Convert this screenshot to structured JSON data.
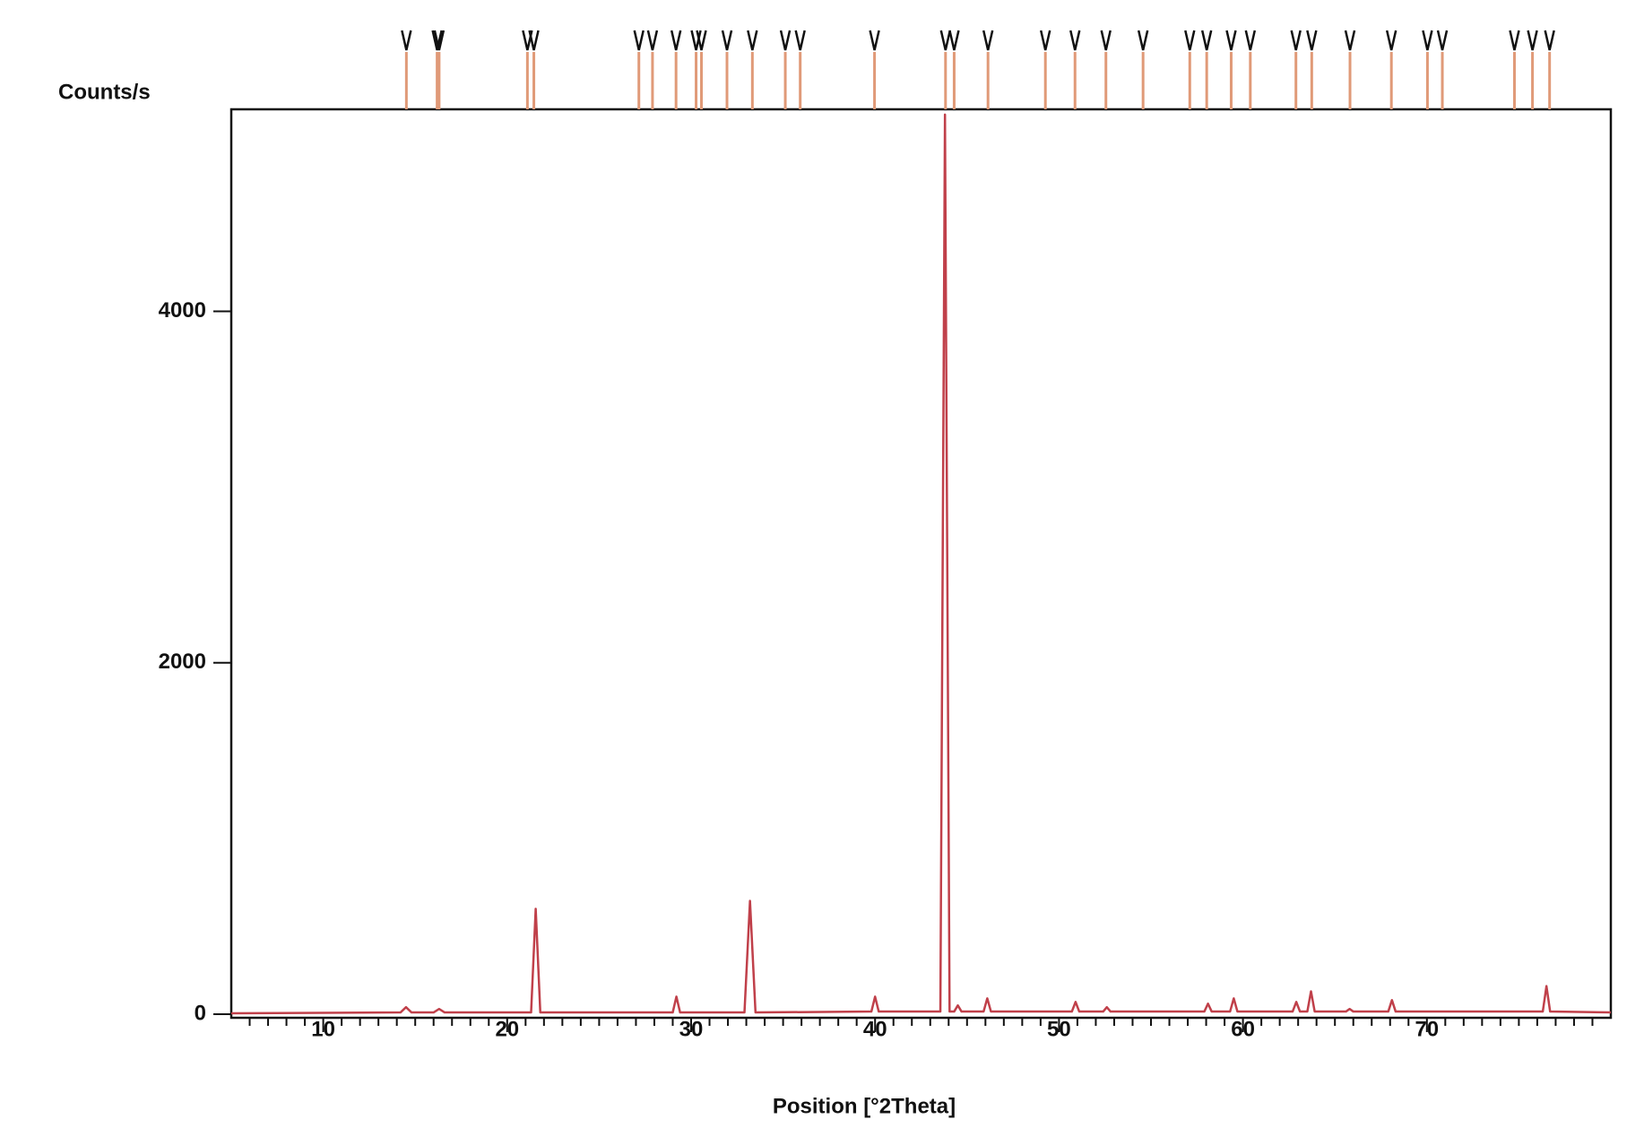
{
  "chart_data": {
    "type": "line",
    "y_label": "Counts/s",
    "x_label": "Position [°2Theta]",
    "color": "#c0404a",
    "x": [
      5,
      14.2,
      14.5,
      14.8,
      16.0,
      16.3,
      16.6,
      21.3,
      21.55,
      21.8,
      29.0,
      29.2,
      29.4,
      32.9,
      33.2,
      33.5,
      39.8,
      40.0,
      40.2,
      43.55,
      43.8,
      44.05,
      44.3,
      44.5,
      44.7,
      45.9,
      46.1,
      46.3,
      50.7,
      50.9,
      51.1,
      52.4,
      52.6,
      52.8,
      57.9,
      58.1,
      58.3,
      59.3,
      59.5,
      59.7,
      62.7,
      62.9,
      63.1,
      63.5,
      63.7,
      63.9,
      65.6,
      65.8,
      66.0,
      67.9,
      68.1,
      68.3,
      76.3,
      76.5,
      76.7,
      80
    ],
    "values": [
      5,
      10,
      40,
      10,
      10,
      30,
      10,
      10,
      600,
      10,
      10,
      100,
      10,
      10,
      645,
      10,
      15,
      100,
      15,
      15,
      5120,
      15,
      15,
      50,
      15,
      15,
      90,
      15,
      15,
      70,
      15,
      15,
      40,
      15,
      15,
      60,
      15,
      15,
      90,
      15,
      15,
      70,
      15,
      15,
      130,
      15,
      15,
      30,
      15,
      15,
      80,
      15,
      15,
      160,
      15,
      10
    ],
    "reference_peaks": [
      14.52,
      16.19,
      16.3,
      21.1,
      21.45,
      27.16,
      27.9,
      29.18,
      30.27,
      30.56,
      31.95,
      33.33,
      35.12,
      35.93,
      39.97,
      43.83,
      44.3,
      46.14,
      49.26,
      50.87,
      52.55,
      54.57,
      57.11,
      58.03,
      59.36,
      60.4,
      62.88,
      63.74,
      65.82,
      68.07,
      70.03,
      70.84,
      74.76,
      75.74,
      76.67
    ],
    "reference_color": "#e09a78",
    "xlim": [
      5,
      80
    ],
    "ylim": [
      0,
      5150
    ],
    "xticks": [
      10,
      20,
      30,
      40,
      50,
      60,
      70
    ],
    "xminorticks": [
      6,
      7,
      8,
      9,
      11,
      12,
      13,
      14,
      15,
      16,
      17,
      18,
      19,
      21,
      22,
      23,
      24,
      25,
      26,
      27,
      28,
      29,
      31,
      32,
      33,
      34,
      35,
      36,
      37,
      38,
      39,
      41,
      42,
      43,
      44,
      45,
      46,
      47,
      48,
      49,
      51,
      52,
      53,
      54,
      55,
      56,
      57,
      58,
      59,
      61,
      62,
      63,
      64,
      65,
      66,
      67,
      68,
      69,
      71,
      72,
      73,
      74,
      75,
      76,
      77,
      78,
      79
    ],
    "yticks": [
      0,
      2000,
      4000
    ],
    "grid": false
  }
}
